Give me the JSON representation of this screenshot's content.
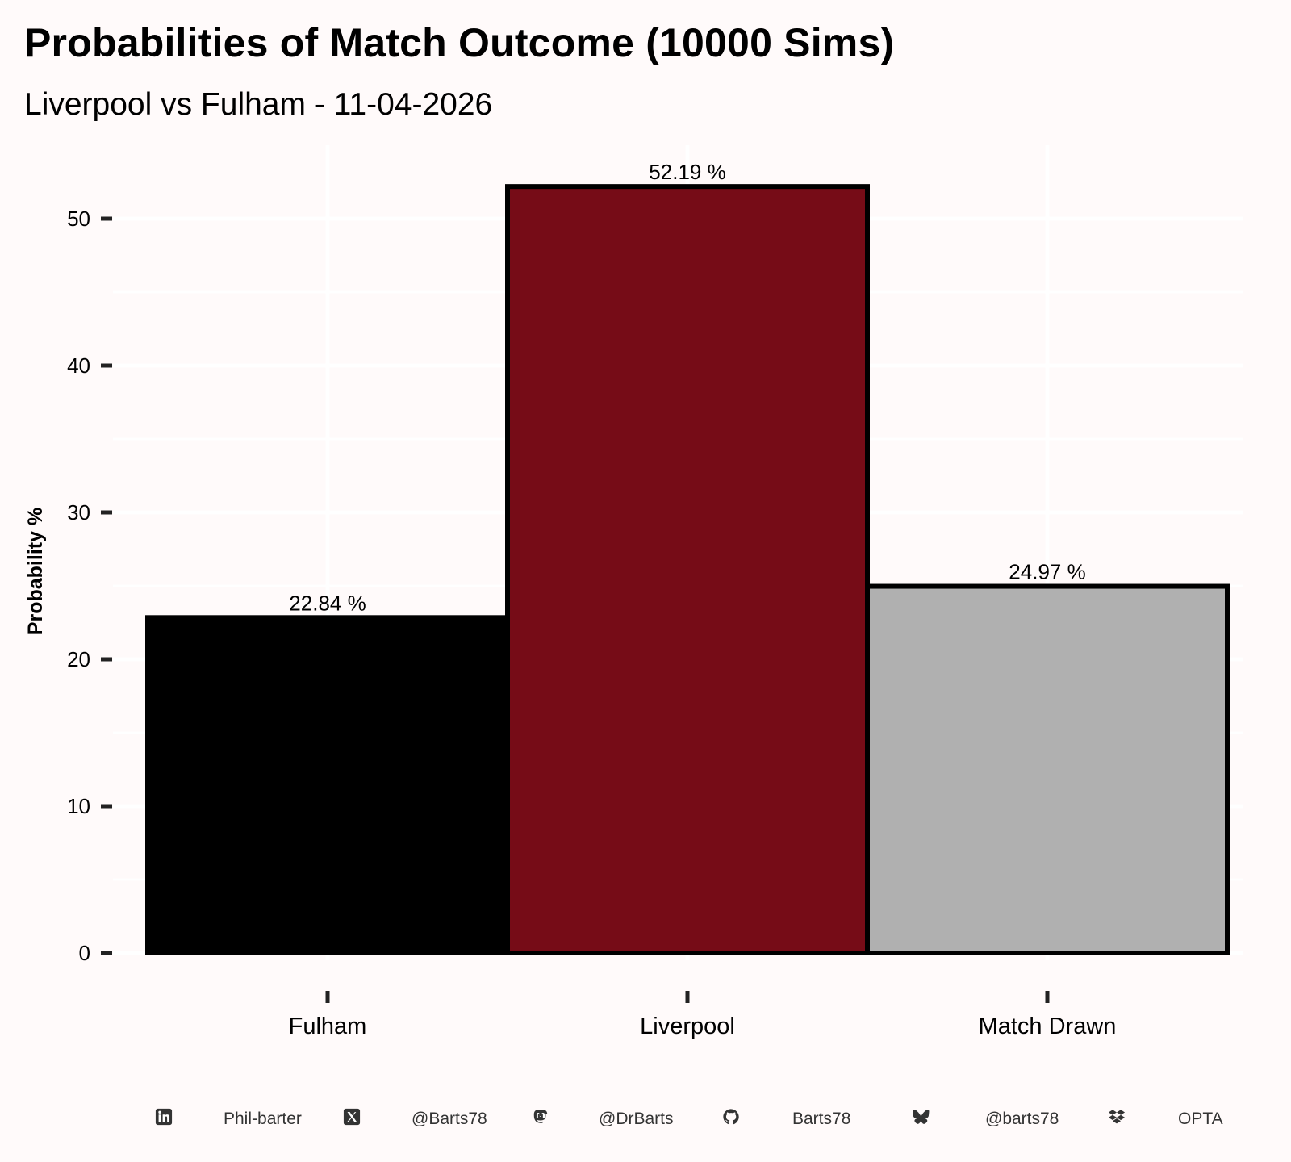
{
  "title": "Probabilities of Match Outcome (10000 Sims)",
  "subtitle": "Liverpool vs Fulham - 11-04-2026",
  "chart_data": {
    "type": "bar",
    "categories": [
      "Fulham",
      "Liverpool",
      "Match Drawn"
    ],
    "values": [
      22.84,
      52.19,
      24.97
    ],
    "data_labels": [
      "22.84  %",
      "52.19  %",
      "24.97  %"
    ],
    "colors": [
      "#000000",
      "#760c17",
      "#b0b0b0"
    ],
    "xlabel": "",
    "ylabel": "Probability %",
    "yticks": [
      0,
      10,
      20,
      30,
      40,
      50
    ],
    "ylim": [
      0,
      54
    ],
    "grid": true,
    "legend": "none"
  },
  "caption": [
    {
      "icon": "linkedin-icon",
      "text": "Phil-barter"
    },
    {
      "icon": "x-twitter-icon",
      "text": "@Barts78"
    },
    {
      "icon": "mastodon-icon",
      "text": "@DrBarts"
    },
    {
      "icon": "github-icon",
      "text": "Barts78"
    },
    {
      "icon": "bluesky-icon",
      "text": "@barts78"
    },
    {
      "icon": "dropbox-icon",
      "text": "OPTA"
    }
  ]
}
